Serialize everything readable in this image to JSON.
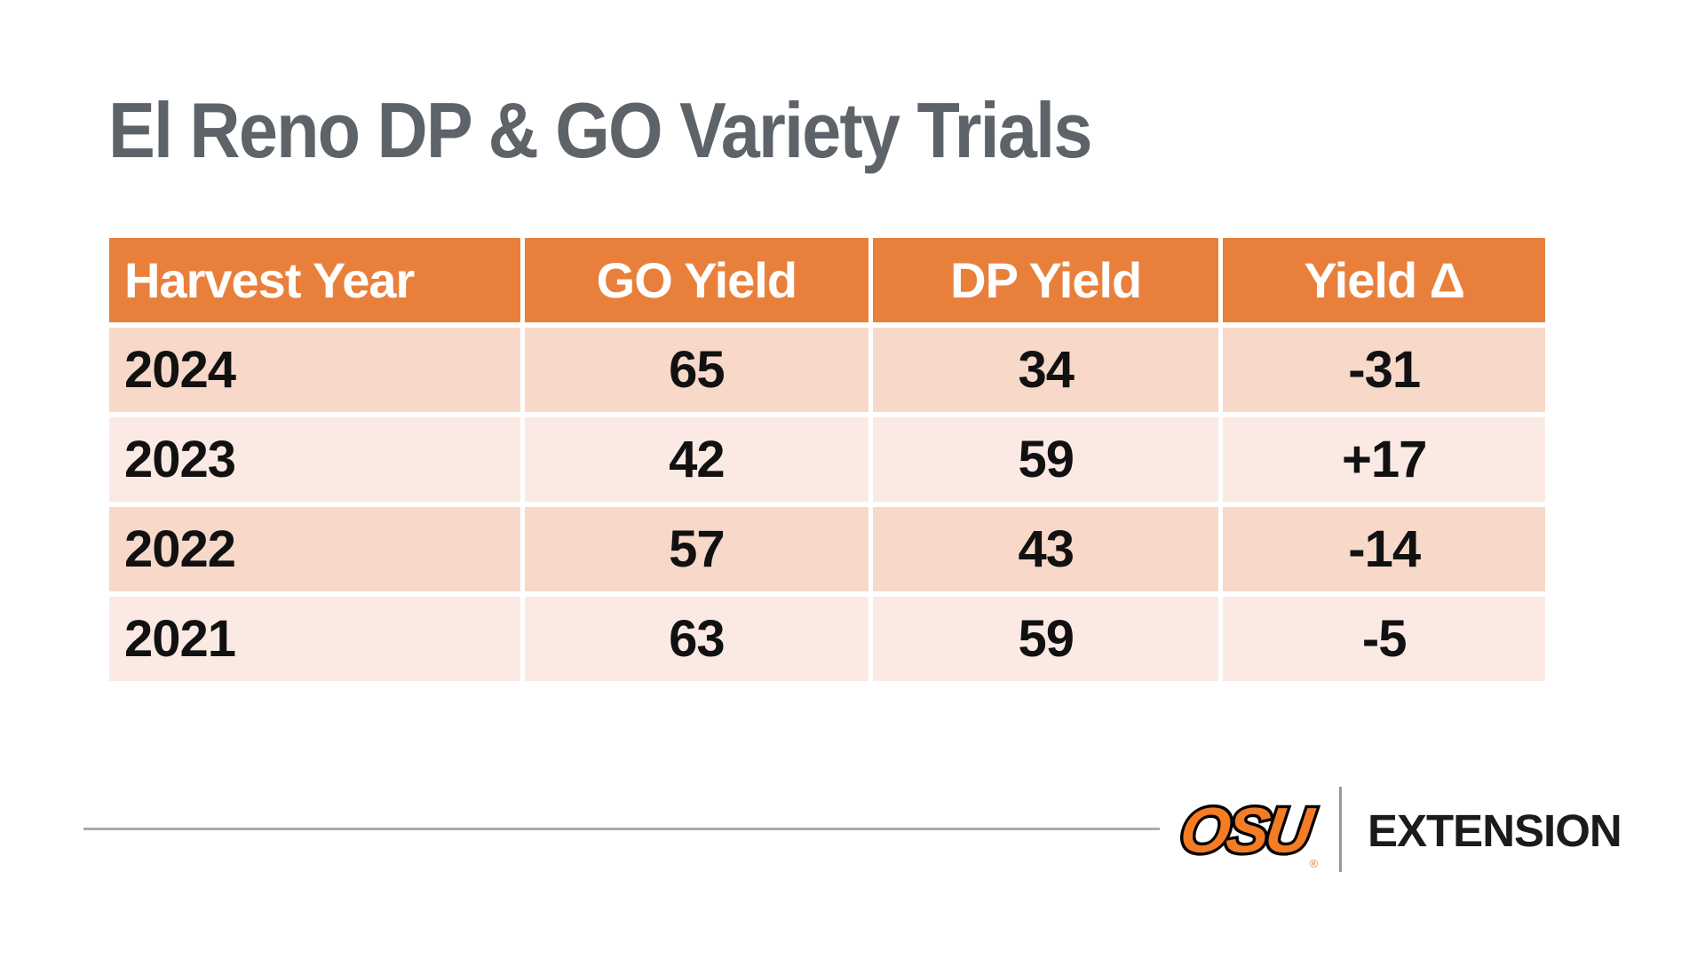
{
  "title": "El Reno DP & GO Variety Trials",
  "table": {
    "headers": [
      "Harvest Year",
      "GO Yield",
      "DP Yield",
      "Yield Δ"
    ],
    "rows": [
      [
        "2024",
        "65",
        "34",
        "-31"
      ],
      [
        "2023",
        "42",
        "59",
        "+17"
      ],
      [
        "2022",
        "57",
        "43",
        "-14"
      ],
      [
        "2021",
        "63",
        "59",
        "-5"
      ]
    ]
  },
  "chart_data": {
    "type": "table",
    "title": "El Reno DP & GO Variety Trials",
    "columns": [
      "Harvest Year",
      "GO Yield",
      "DP Yield",
      "Yield Δ"
    ],
    "categories": [
      "2024",
      "2023",
      "2022",
      "2021"
    ],
    "series": [
      {
        "name": "GO Yield",
        "values": [
          65,
          42,
          57,
          63
        ]
      },
      {
        "name": "DP Yield",
        "values": [
          34,
          59,
          43,
          59
        ]
      },
      {
        "name": "Yield Δ",
        "values": [
          -31,
          17,
          -14,
          -5
        ]
      }
    ]
  },
  "footer": {
    "logo_text": "OSU",
    "registered_mark": "®",
    "brand_label": "EXTENSION"
  },
  "colors": {
    "header_orange": "#e8803c",
    "row_dark_pink": "#f7d8c9",
    "row_light_pink": "#fbeae4",
    "title_gray": "#5d6369",
    "logo_orange": "#f47c24",
    "body_text": "#111111"
  }
}
